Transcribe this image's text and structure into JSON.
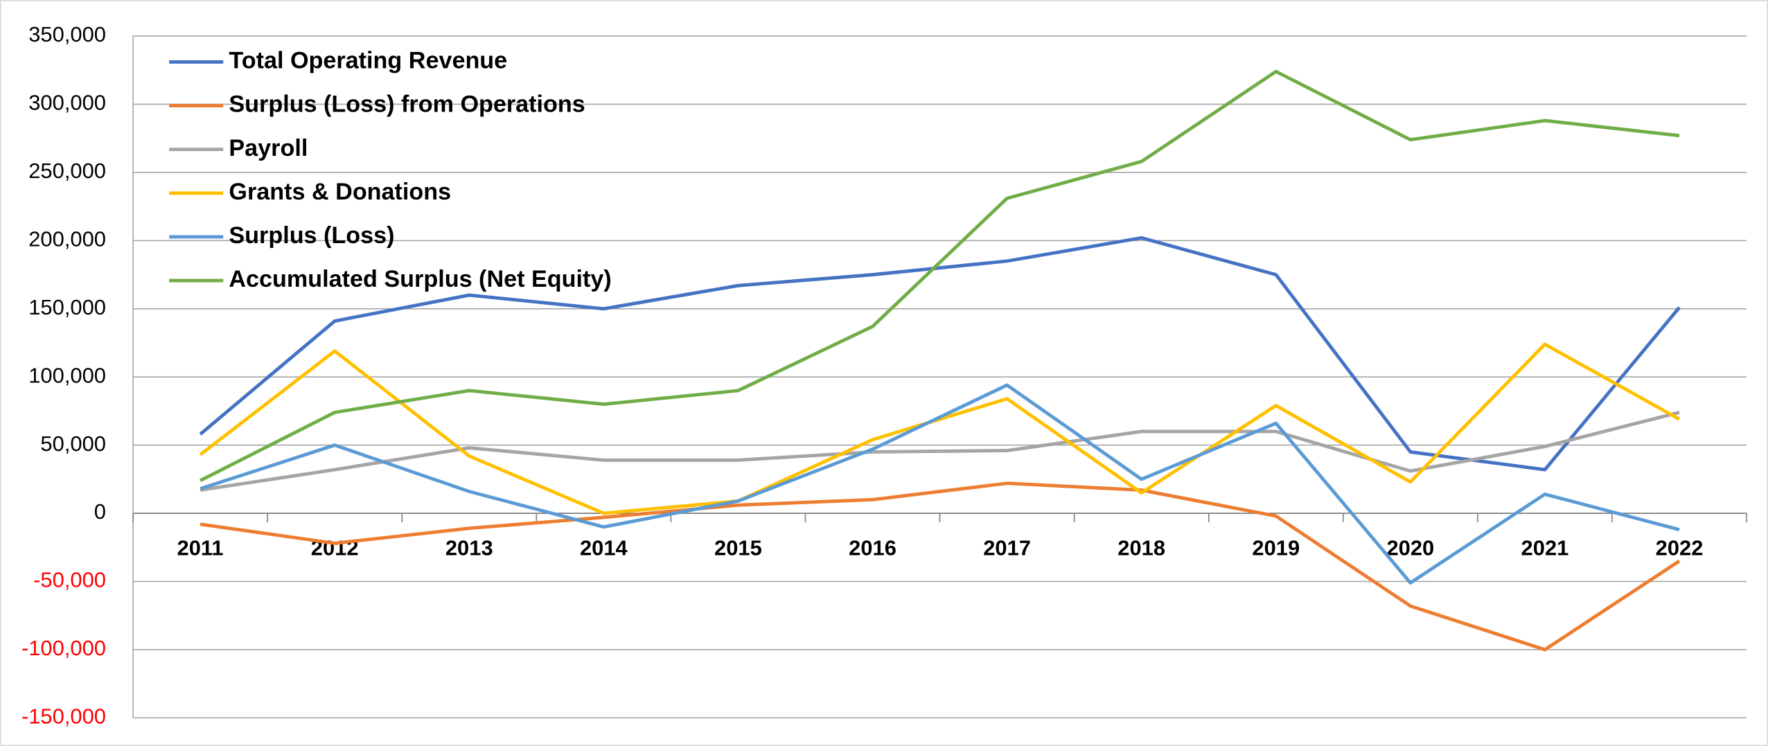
{
  "chart_data": {
    "type": "line",
    "categories": [
      "2011",
      "2012",
      "2013",
      "2014",
      "2015",
      "2016",
      "2017",
      "2018",
      "2019",
      "2020",
      "2021",
      "2022"
    ],
    "series": [
      {
        "name": "Total Operating Revenue",
        "color": "#4472c4",
        "values": [
          58000,
          141000,
          160000,
          150000,
          167000,
          175000,
          185000,
          202000,
          175000,
          45000,
          32000,
          151000
        ]
      },
      {
        "name": "Surplus (Loss) from Operations",
        "color": "#ed7d31",
        "values": [
          -8000,
          -22000,
          -11000,
          -3000,
          6000,
          10000,
          22000,
          17000,
          -2000,
          -68000,
          -100000,
          -35000
        ]
      },
      {
        "name": "Payroll",
        "color": "#a5a5a5",
        "values": [
          17000,
          32000,
          48000,
          39000,
          39000,
          45000,
          46000,
          60000,
          60000,
          31000,
          49000,
          74000
        ]
      },
      {
        "name": "Grants & Donations",
        "color": "#ffc000",
        "values": [
          43000,
          119000,
          42000,
          0,
          9000,
          54000,
          84000,
          15000,
          79000,
          23000,
          124000,
          69000
        ]
      },
      {
        "name": "Surplus (Loss)",
        "color": "#5b9bd5",
        "values": [
          18000,
          50000,
          16000,
          -10000,
          9000,
          47000,
          94000,
          25000,
          66000,
          -51000,
          14000,
          -12000
        ]
      },
      {
        "name": "Accumulated Surplus (Net Equity)",
        "color": "#70ad47",
        "values": [
          24000,
          74000,
          90000,
          80000,
          90000,
          137000,
          231000,
          258000,
          324000,
          274000,
          288000,
          277000
        ]
      }
    ],
    "ylim": [
      -150000,
      350000
    ],
    "yticks": [
      {
        "value": -150000,
        "label": "-150,000"
      },
      {
        "value": -100000,
        "label": "-100,000"
      },
      {
        "value": -50000,
        "label": "-50,000"
      },
      0,
      {
        "value": 50000,
        "label": "50,000"
      },
      {
        "value": 100000,
        "label": "100,000"
      },
      {
        "value": 150000,
        "label": "150,000"
      },
      {
        "value": 200000,
        "label": "200,000"
      },
      {
        "value": 250000,
        "label": "250,000"
      },
      {
        "value": 300000,
        "label": "300,000"
      },
      {
        "value": 350000,
        "label": "350,000"
      }
    ],
    "negative_tick_color": "#ff0000",
    "grid": true,
    "legend": "top-left"
  }
}
